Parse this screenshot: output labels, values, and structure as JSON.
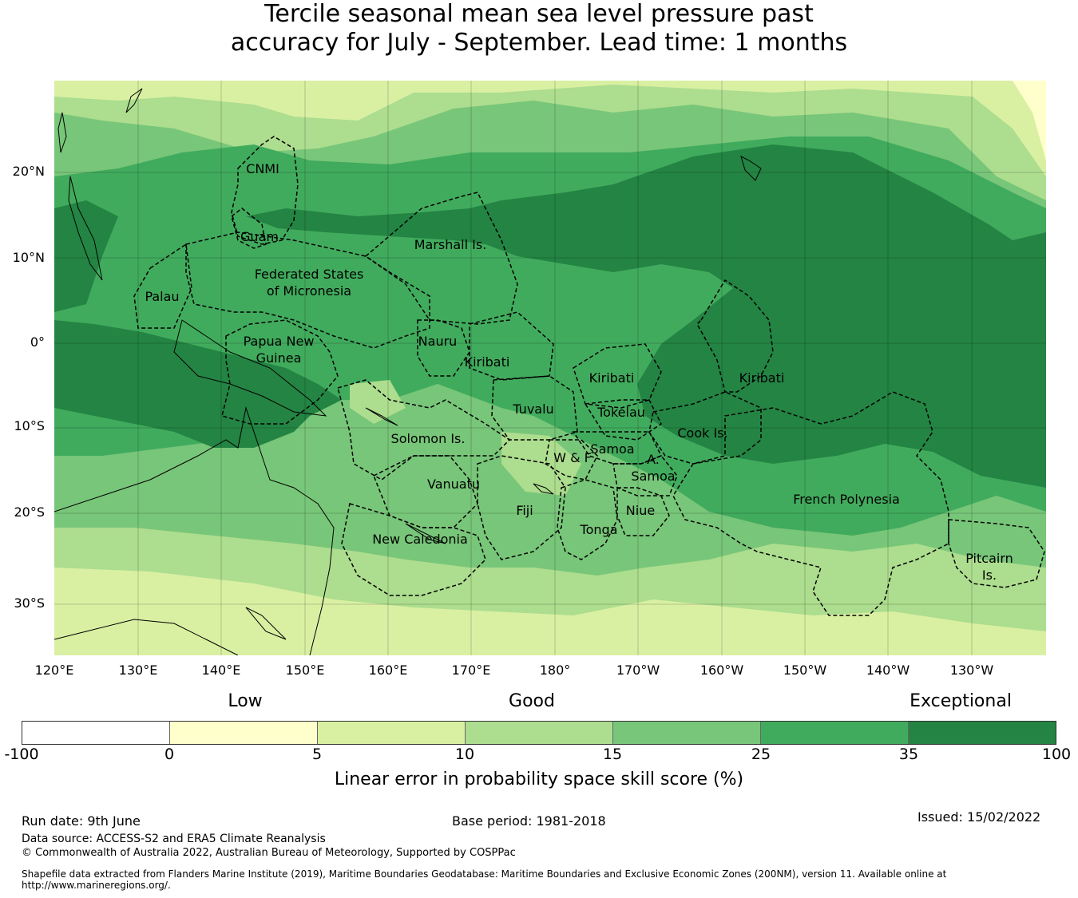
{
  "title": {
    "line1": "Tercile seasonal mean sea level pressure past",
    "line2": "accuracy for July - September. Lead time: 1 months"
  },
  "map": {
    "lon_range": [
      120,
      239
    ],
    "lat_range": [
      -36,
      31
    ],
    "lat_ticks": [
      "20°N",
      "10°N",
      "0°",
      "10°S",
      "20°S",
      "30°S"
    ],
    "lon_ticks": [
      "120°E",
      "130°E",
      "140°E",
      "150°E",
      "160°E",
      "170°E",
      "180°",
      "170°W",
      "160°W",
      "150°W",
      "140°W",
      "130°W"
    ],
    "regions": [
      {
        "name": "CNMI"
      },
      {
        "name": "Guam"
      },
      {
        "name": "Marshall Is."
      },
      {
        "name": "Federated States"
      },
      {
        "name": "of Micronesia"
      },
      {
        "name": "Palau"
      },
      {
        "name": "Papua New"
      },
      {
        "name": "Guinea"
      },
      {
        "name": "Nauru"
      },
      {
        "name": "Kiribati"
      },
      {
        "name": "Kiribati"
      },
      {
        "name": "Kiribati"
      },
      {
        "name": "Tuvalu"
      },
      {
        "name": "Tokelau"
      },
      {
        "name": "Solomon Is."
      },
      {
        "name": "Cook Is."
      },
      {
        "name": "Samoa"
      },
      {
        "name": "W & F"
      },
      {
        "name": "A."
      },
      {
        "name": "Samoa"
      },
      {
        "name": "Vanuatu"
      },
      {
        "name": "Fiji"
      },
      {
        "name": "Niue"
      },
      {
        "name": "Tonga"
      },
      {
        "name": "French Polynesia"
      },
      {
        "name": "New Caledonia"
      },
      {
        "name": "Pitcairn"
      },
      {
        "name": "Is."
      }
    ],
    "colors": {
      "band_0_5": "#ffffcc",
      "band_5_10": "#d9f0a3",
      "band_10_15": "#addd8e",
      "band_15_25": "#78c679",
      "band_25_35": "#41ab5d",
      "band_35_100": "#238443"
    }
  },
  "colorbar": {
    "categories": [
      "Low",
      "Good",
      "Exceptional"
    ],
    "ticks": [
      "-100",
      "0",
      "5",
      "10",
      "15",
      "25",
      "35",
      "100"
    ],
    "colors": [
      "#ffffff",
      "#ffffcc",
      "#d9f0a3",
      "#addd8e",
      "#78c679",
      "#41ab5d",
      "#238443"
    ],
    "label": "Linear error in probability space skill score (%)"
  },
  "footer": {
    "run_date": "Run date: 9th June",
    "base_period": "Base period: 1981-2018",
    "issued": "Issued: 15/02/2022",
    "data_source": "Data source: ACCESS-S2 and ERA5 Climate Reanalysis",
    "copyright": "© Commonwealth of Australia 2022, Australian Bureau of Meteorology, Supported by COSPPac",
    "shapefile_line1": "Shapefile data extracted from Flanders Marine Institute (2019), Maritime Boundaries Geodatabase: Maritime Boundaries and Exclusive Economic Zones (200NM), version 11. Available online at",
    "shapefile_line2": "http://www.marineregions.org/."
  }
}
